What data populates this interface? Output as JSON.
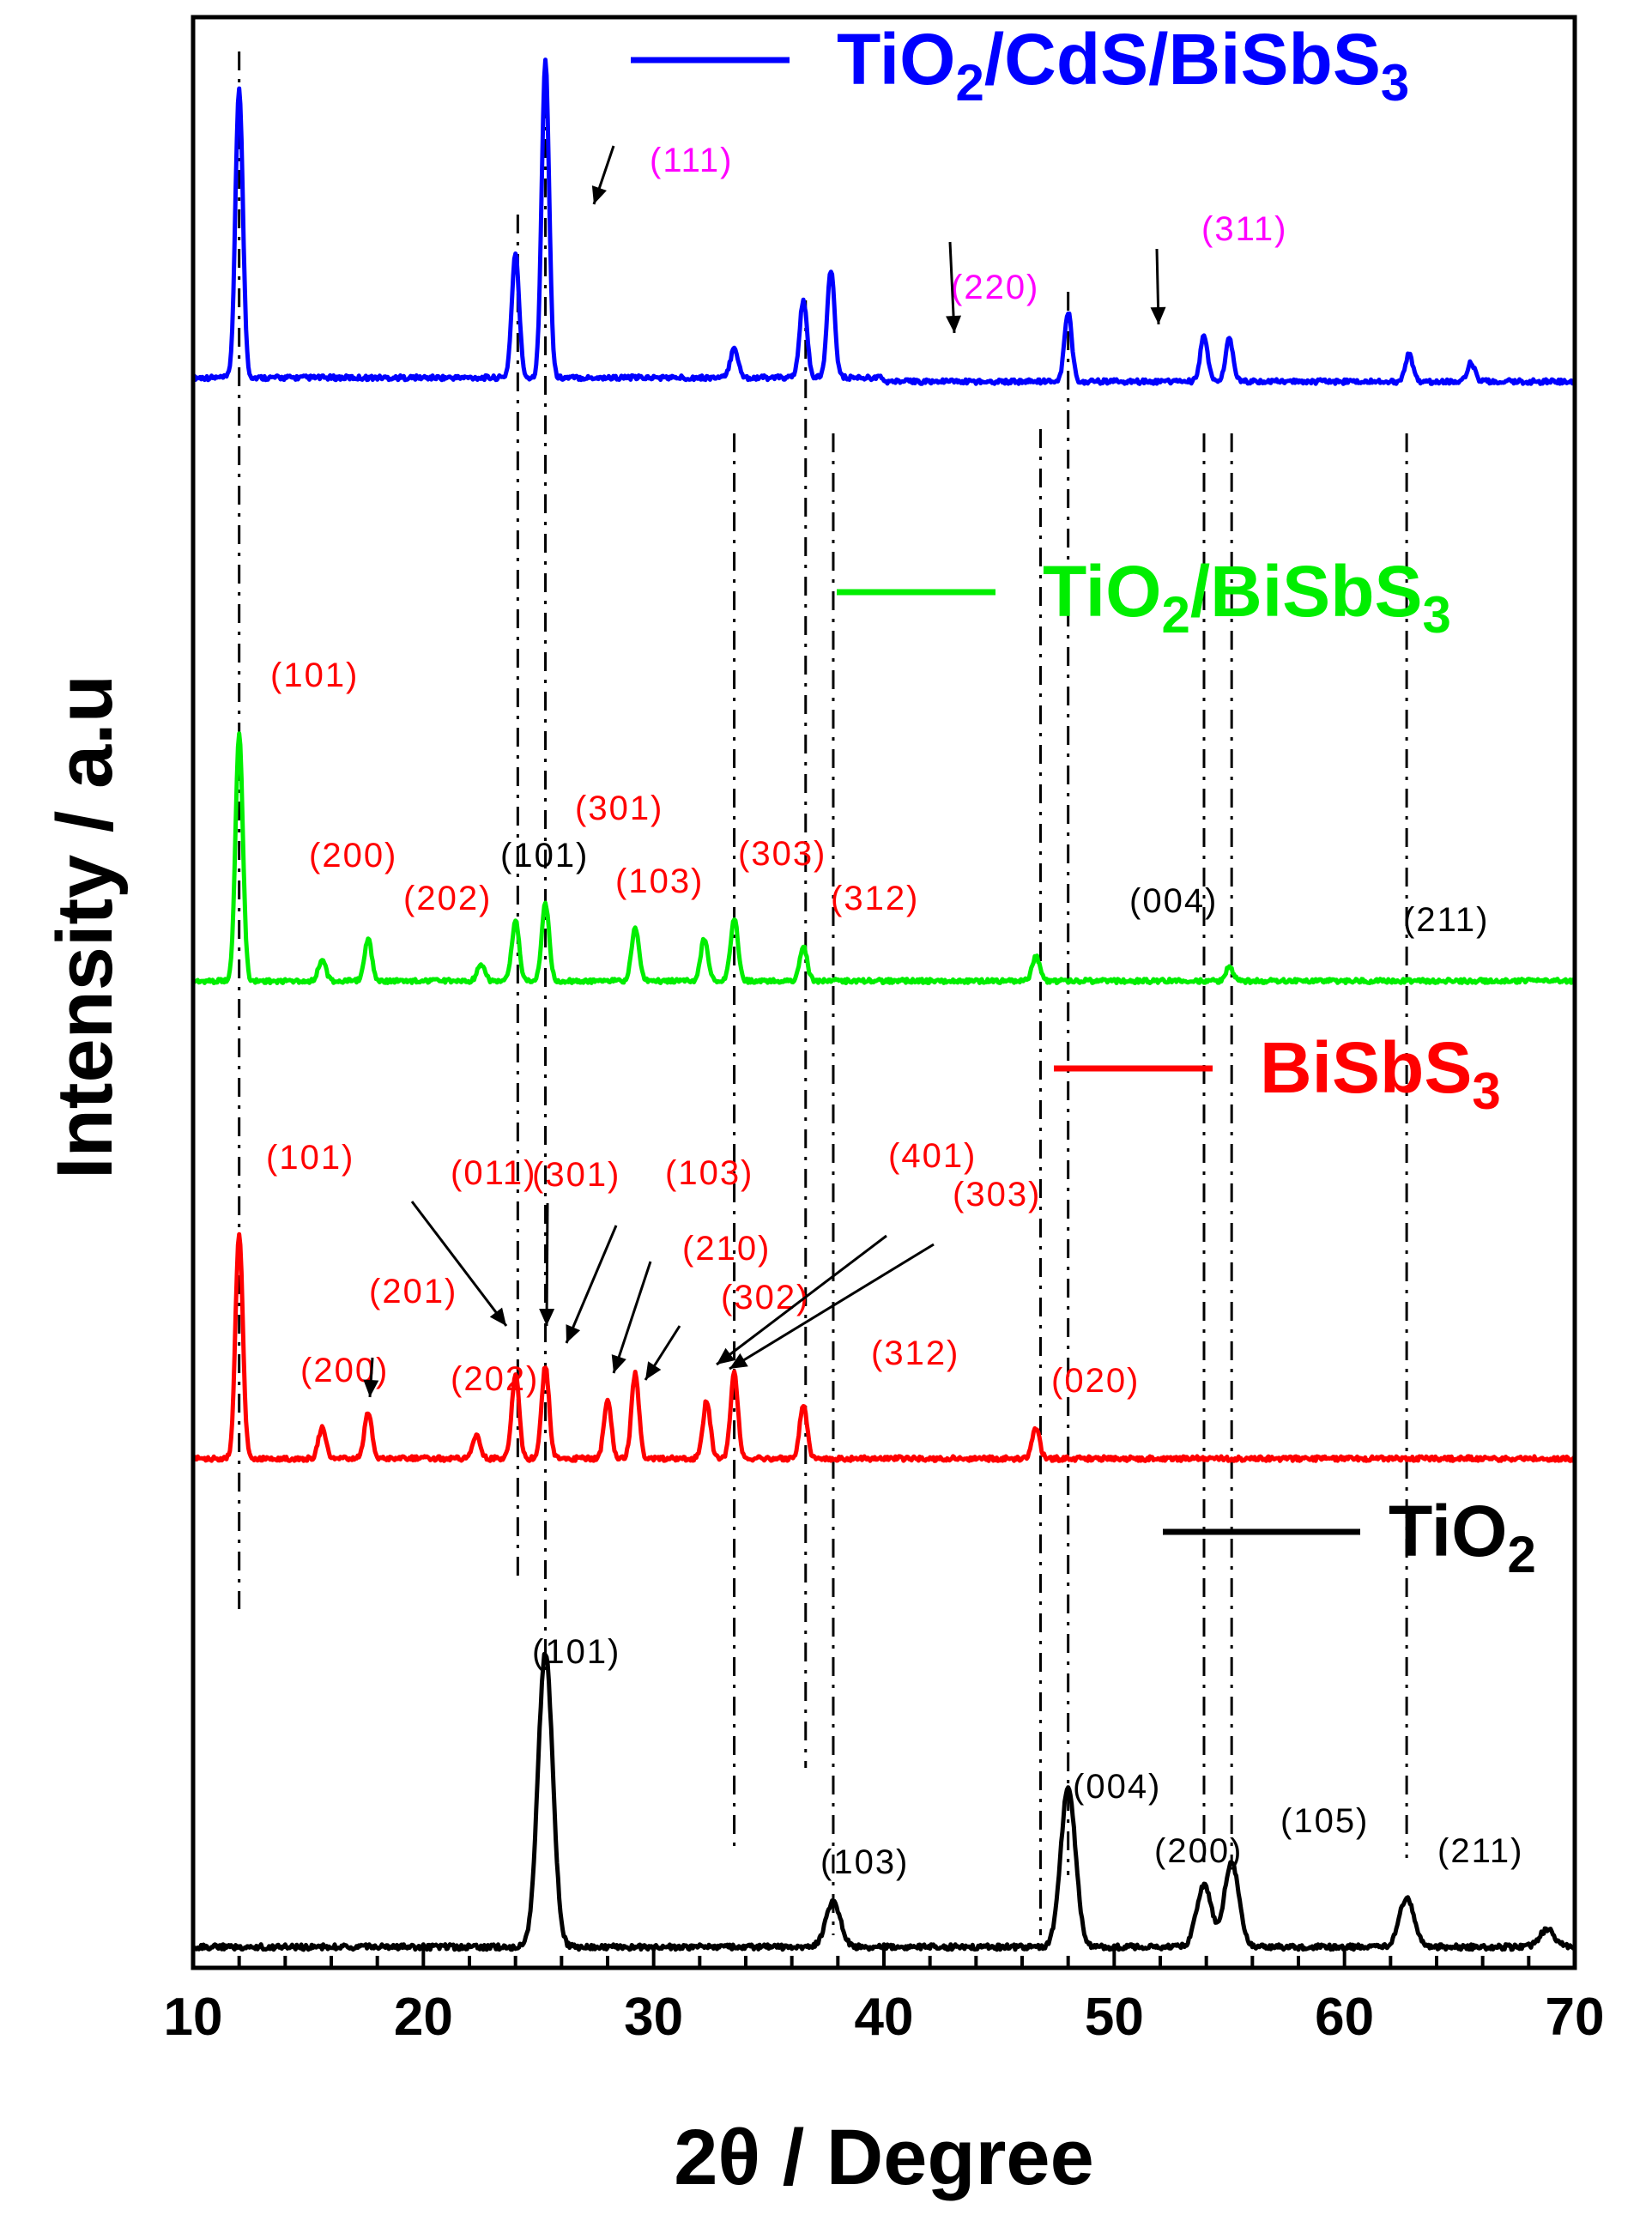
{
  "chart_data": {
    "type": "line",
    "xlabel": "2θ / Degree",
    "ylabel": "Intensity / a.u",
    "xlim": [
      10,
      70
    ],
    "x_ticks": [
      "10",
      "20",
      "30",
      "40",
      "50",
      "60",
      "70"
    ],
    "grid": false,
    "legend_placement": "per-trace, right of each curve",
    "reference_lines_2theta": [
      12.0,
      24.1,
      25.3,
      33.5,
      36.6,
      37.8,
      46.8,
      48.0,
      53.9,
      55.1,
      62.7
    ],
    "series": [
      {
        "name_parts": [
          "TiO",
          "2",
          "/CdS/BiSbS",
          "3"
        ],
        "color": "#0000ff",
        "peaks": [
          [
            12.0,
            75
          ],
          [
            24.0,
            32
          ],
          [
            25.3,
            82
          ],
          [
            33.5,
            8
          ],
          [
            36.5,
            20
          ],
          [
            37.7,
            28
          ],
          [
            48.0,
            18
          ],
          [
            53.9,
            12
          ],
          [
            55.0,
            11
          ],
          [
            62.8,
            7
          ],
          [
            65.5,
            5
          ]
        ],
        "annotations": [
          {
            "text": "(111)",
            "x": 27.0,
            "color": "#ff00ff"
          },
          {
            "text": "(220)",
            "x": 43.0,
            "color": "#ff00ff"
          },
          {
            "text": "(311)",
            "x": 51.6,
            "color": "#ff00ff"
          }
        ]
      },
      {
        "name_parts": [
          "TiO",
          "2",
          "/BiSbS",
          "3"
        ],
        "color": "#00ee00",
        "peaks": [
          [
            12.0,
            70
          ],
          [
            15.6,
            6
          ],
          [
            17.6,
            12
          ],
          [
            22.5,
            5
          ],
          [
            24.0,
            17
          ],
          [
            25.3,
            22
          ],
          [
            29.2,
            15
          ],
          [
            32.2,
            12
          ],
          [
            33.5,
            18
          ],
          [
            36.5,
            10
          ],
          [
            46.6,
            7
          ],
          [
            55.0,
            4
          ]
        ],
        "annotations": [
          {
            "text": "(101)",
            "x": 12.0,
            "color": "#ff0000"
          },
          {
            "text": "(200)",
            "x": 15.0,
            "color": "#ff0000"
          },
          {
            "text": "(202)",
            "x": 19.0,
            "color": "#ff0000"
          },
          {
            "text": "(101)",
            "x": 24.0,
            "color": "#000000"
          },
          {
            "text": "(301)",
            "x": 25.3,
            "color": "#ff0000"
          },
          {
            "text": "(103)",
            "x": 28.1,
            "color": "#ff0000"
          },
          {
            "text": "(303)",
            "x": 32.0,
            "color": "#ff0000"
          },
          {
            "text": "(312)",
            "x": 36.0,
            "color": "#ff0000"
          },
          {
            "text": "(004)",
            "x": 49.0,
            "color": "#000000"
          },
          {
            "text": "(211)",
            "x": 62.5,
            "color": "#000000"
          }
        ]
      },
      {
        "name_parts": [
          "BiSbS",
          "3"
        ],
        "color": "#ff0000",
        "peaks": [
          [
            12.0,
            58
          ],
          [
            15.6,
            8
          ],
          [
            17.6,
            12
          ],
          [
            22.3,
            6
          ],
          [
            24.0,
            22
          ],
          [
            25.3,
            24
          ],
          [
            28.0,
            15
          ],
          [
            29.2,
            22
          ],
          [
            32.3,
            15
          ],
          [
            33.5,
            22
          ],
          [
            36.5,
            14
          ],
          [
            46.6,
            8
          ]
        ],
        "annotations": [
          {
            "text": "(101)",
            "x": 13.0,
            "color": "#ff0000"
          },
          {
            "text": "(201)",
            "x": 17.5,
            "color": "#ff0000"
          },
          {
            "text": "(200)",
            "x": 14.7,
            "color": "#ff0000"
          },
          {
            "text": "(202)",
            "x": 20.9,
            "color": "#ff0000"
          },
          {
            "text": "(011)",
            "x": 20.8,
            "color": "#ff0000"
          },
          {
            "text": "(301)",
            "x": 25.3,
            "color": "#ff0000"
          },
          {
            "text": "(103)",
            "x": 30.2,
            "color": "#ff0000"
          },
          {
            "text": "(210)",
            "x": 30.3,
            "color": "#ff0000"
          },
          {
            "text": "(302)",
            "x": 32.2,
            "color": "#ff0000"
          },
          {
            "text": "(401)",
            "x": 40.5,
            "color": "#ff0000"
          },
          {
            "text": "(303)",
            "x": 43.3,
            "color": "#ff0000"
          },
          {
            "text": "(312)",
            "x": 38.7,
            "color": "#ff0000"
          },
          {
            "text": "(020)",
            "x": 48.2,
            "color": "#ff0000"
          }
        ]
      },
      {
        "name_parts": [
          "TiO",
          "2"
        ],
        "color": "#000000",
        "peaks": [
          [
            25.3,
            66
          ],
          [
            37.8,
            10
          ],
          [
            48.0,
            36
          ],
          [
            53.9,
            14
          ],
          [
            55.1,
            19
          ],
          [
            62.7,
            11
          ],
          [
            68.8,
            4
          ]
        ],
        "annotations": [
          {
            "text": "(101)",
            "x": 24.0,
            "color": "#000000"
          },
          {
            "text": "(103)",
            "x": 37.7,
            "color": "#000000"
          },
          {
            "text": "(004)",
            "x": 48.0,
            "color": "#000000"
          },
          {
            "text": "(200)",
            "x": 51.5,
            "color": "#000000"
          },
          {
            "text": "(105)",
            "x": 55.9,
            "color": "#000000"
          },
          {
            "text": "(211)",
            "x": 62.8,
            "color": "#000000"
          }
        ]
      }
    ]
  }
}
